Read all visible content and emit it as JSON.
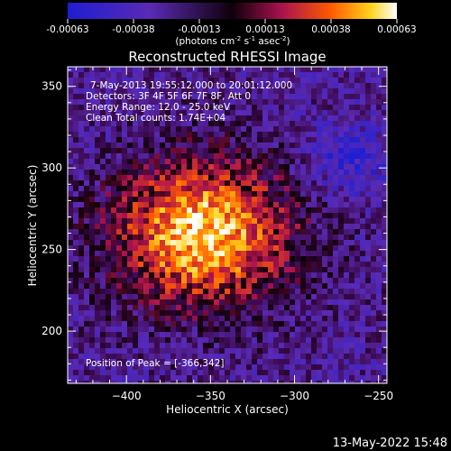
{
  "chart_data": {
    "type": "heatmap",
    "title": "Reconstructed RHESSI Image",
    "xlabel": "Heliocentric X (arcsec)",
    "ylabel": "Heliocentric Y (arcsec)",
    "xlim": [
      -435,
      -245
    ],
    "ylim": [
      168,
      362
    ],
    "xticks": [
      -400,
      -350,
      -300,
      -250
    ],
    "yticks": [
      200,
      250,
      300,
      350
    ],
    "colorbar": {
      "range": [
        -0.00063,
        0.00063
      ],
      "ticks": [
        "-0.00063",
        "-0.00038",
        "-0.00013",
        "0.00013",
        "0.00038",
        "0.00063"
      ],
      "units_prefix": "(photons cm",
      "units_exp1": "-2",
      "units_mid": " s",
      "units_exp2": "-1",
      "units_mid2": " asec",
      "units_exp3": "-2",
      "units_suffix": ")"
    },
    "annotations": [
      "7-May-2013 19:55:12.000 to 20:01:12.000",
      "Detectors: 3F 4F 5F 6F 7F 8F, Att 0",
      "Energy Range: 12.0 - 25.0 keV",
      "Clean     Total counts: 1.74E+04"
    ],
    "peak_label": "Position of Peak = [-366,342]",
    "peak": [
      -366,
      342
    ],
    "source": {
      "center": [
        -355,
        260
      ],
      "sigma": [
        38,
        32
      ]
    },
    "negative_region": {
      "center": [
        -268,
        305
      ]
    }
  },
  "timestamp": "13-May-2022 15:48"
}
